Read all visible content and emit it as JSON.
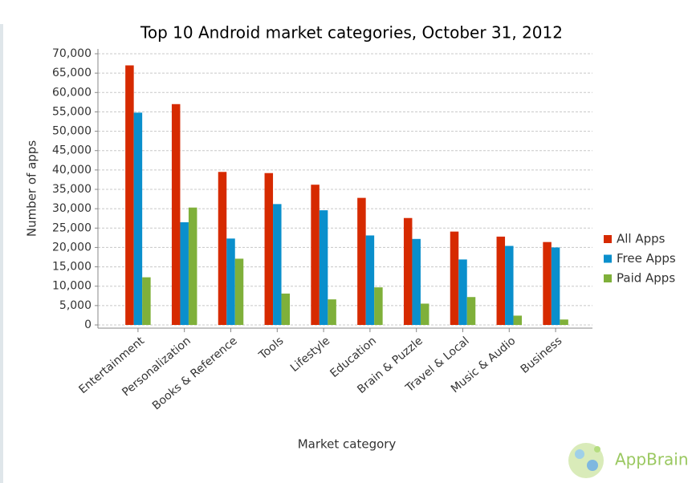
{
  "chart_data": {
    "type": "bar",
    "title": "Top 10 Android market categories, October 31, 2012",
    "x_label": "Market category",
    "y_label": "Number of apps",
    "categories": [
      "Entertainment",
      "Personalization",
      "Books & Reference",
      "Tools",
      "Lifestyle",
      "Education",
      "Brain & Puzzle",
      "Travel & Local",
      "Music & Audio",
      "Business"
    ],
    "series": [
      {
        "name": "All Apps",
        "color": "#d62a00",
        "values": [
          67000,
          57000,
          39500,
          39200,
          36200,
          32800,
          27600,
          24100,
          22800,
          21400
        ]
      },
      {
        "name": "Free Apps",
        "color": "#0a8fcc",
        "values": [
          54800,
          26500,
          22300,
          31200,
          29600,
          23100,
          22200,
          16900,
          20400,
          20000
        ]
      },
      {
        "name": "Paid Apps",
        "color": "#7fb03a",
        "values": [
          12300,
          30300,
          17100,
          8100,
          6600,
          9700,
          5500,
          7200,
          2400,
          1400
        ]
      }
    ],
    "ylim": [
      0,
      70000
    ],
    "yticks": [
      0,
      {
        "value": 5000,
        "label": "5,000"
      },
      {
        "value": 10000,
        "label": "10,000"
      },
      {
        "value": 15000,
        "label": "15,000"
      },
      {
        "value": 20000,
        "label": "20,000"
      },
      {
        "value": 25000,
        "label": "25,000"
      },
      {
        "value": 30000,
        "label": "30,000"
      },
      {
        "value": 35000,
        "label": "35,000"
      },
      {
        "value": 40000,
        "label": "40,000"
      },
      {
        "value": 45000,
        "label": "45,000"
      },
      {
        "value": 50000,
        "label": "50,000"
      },
      {
        "value": 55000,
        "label": "55,000"
      },
      {
        "value": 60000,
        "label": "60,000"
      },
      {
        "value": 65000,
        "label": "65,000"
      },
      {
        "value": 70000,
        "label": "70,000"
      }
    ],
    "grid": true,
    "legend": "right",
    "watermark": "AppBrain"
  }
}
